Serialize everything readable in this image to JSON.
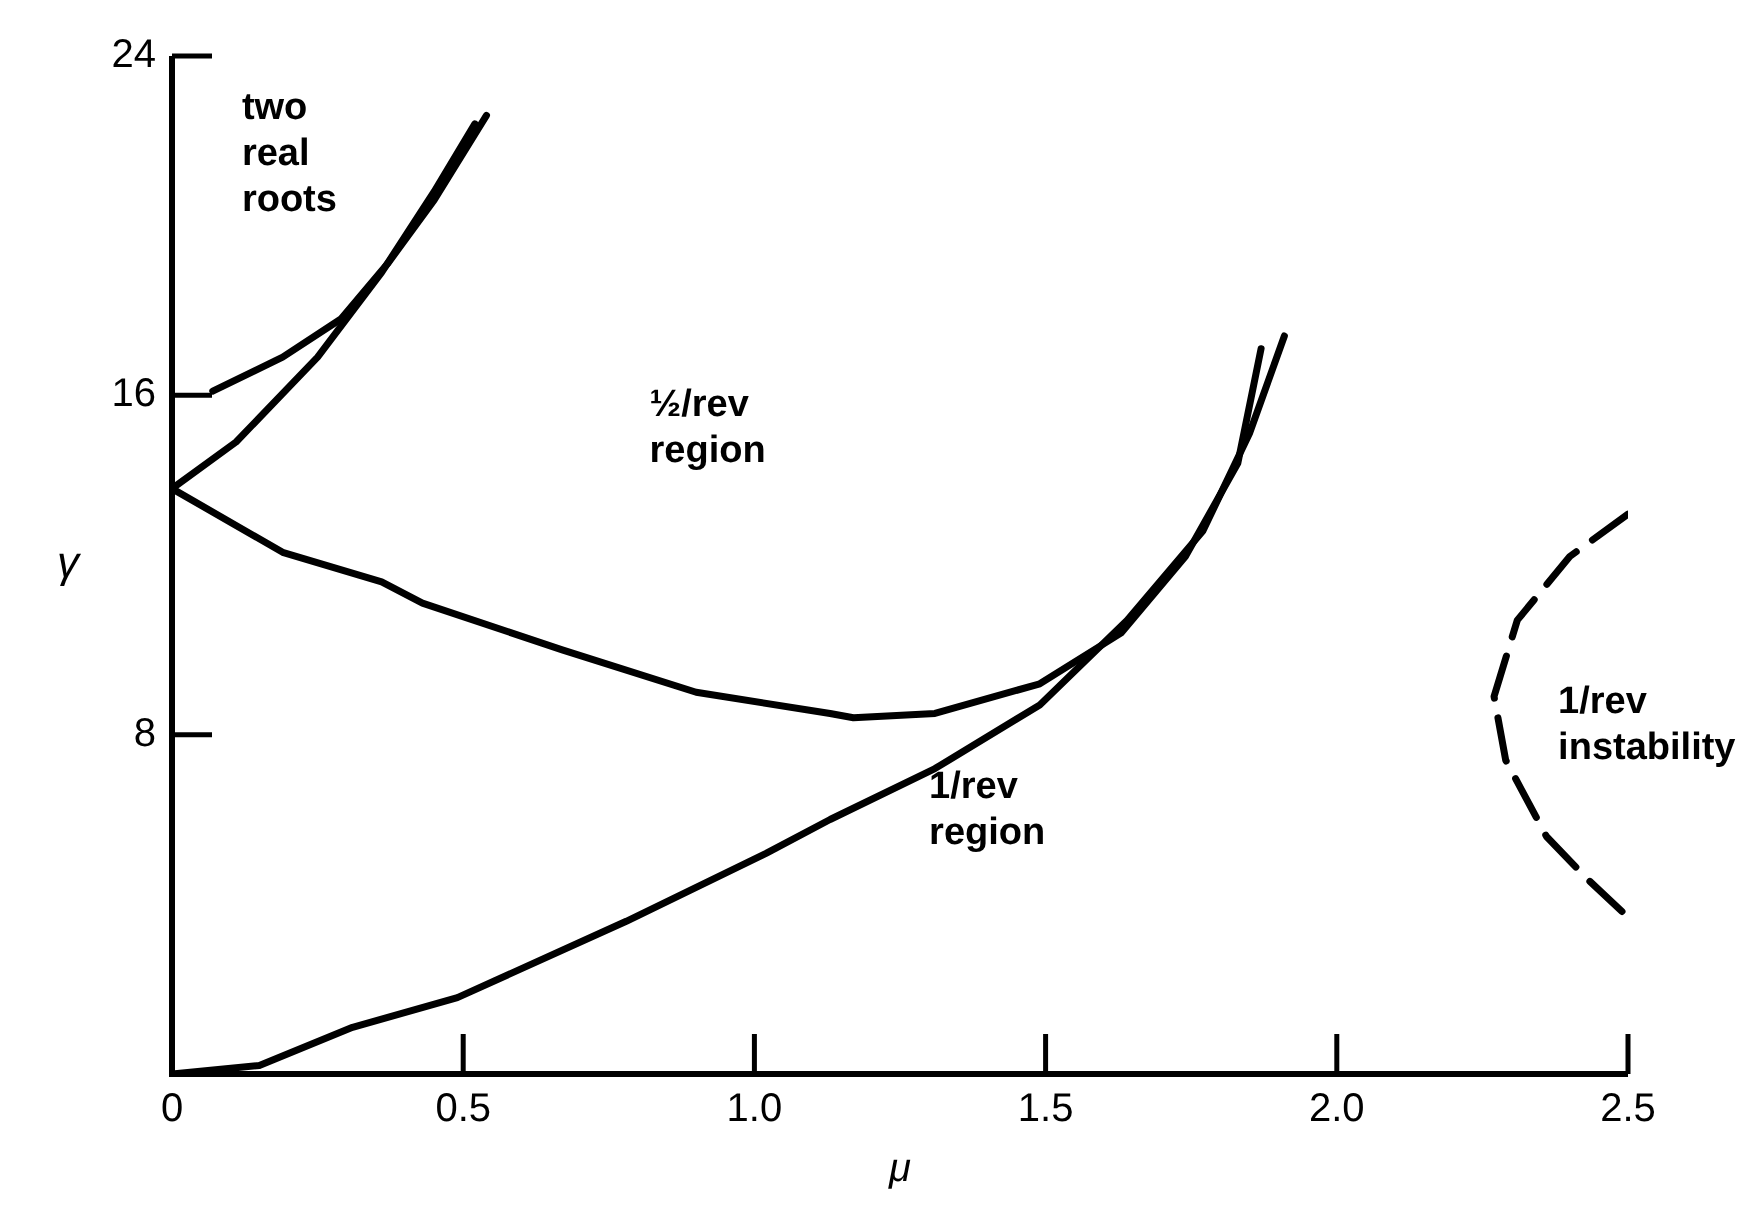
{
  "chart_data": {
    "type": "line",
    "xlabel": "μ",
    "ylabel": "γ",
    "xlim": [
      0,
      2.5
    ],
    "ylim": [
      0,
      24
    ],
    "xticks": [
      0,
      {
        "value": 0.5,
        "label": "0.5"
      },
      {
        "value": 1,
        "label": "1.0"
      },
      {
        "value": 1.5,
        "label": "1.5"
      },
      {
        "value": 2,
        "label": "2.0"
      },
      {
        "value": 2.5,
        "label": "2.5"
      }
    ],
    "yticks": [
      8,
      16,
      24
    ],
    "grid": false,
    "legend": false,
    "marker": "none",
    "series": [
      {
        "color": "#000000",
        "line_style": "solid",
        "x": [
          0.07,
          0.19,
          0.29,
          0.37,
          0.45,
          0.54
        ],
        "values": [
          16.1,
          16.9,
          17.8,
          19.1,
          20.6,
          22.6
        ]
      },
      {
        "color": "#000000",
        "line_style": "solid",
        "x": [
          0,
          0.11,
          0.25,
          0.36,
          0.45,
          0.52
        ],
        "values": [
          13.8,
          14.9,
          16.9,
          18.9,
          20.8,
          22.4
        ]
      },
      {
        "color": "#000000",
        "line_style": "solid",
        "x": [
          0,
          0.19,
          0.36,
          0.43,
          0.67,
          0.9,
          1.13,
          1.17,
          1.31,
          1.49,
          1.63,
          1.74,
          1.83,
          1.87
        ],
        "values": [
          13.8,
          12.3,
          11.6,
          11.1,
          10,
          9,
          8.5,
          8.4,
          8.5,
          9.2,
          10.4,
          12.2,
          14.4,
          17.1
        ]
      },
      {
        "color": "#000000",
        "line_style": "solid",
        "x": [
          0,
          0.15,
          0.31,
          0.49,
          0.78,
          1.02,
          1.13,
          1.31,
          1.49,
          1.64,
          1.77,
          1.85,
          1.91
        ],
        "values": [
          0,
          0.2,
          1.1,
          1.8,
          3.6,
          5.2,
          6,
          7.2,
          8.7,
          10.7,
          12.8,
          15.1,
          17.4
        ]
      },
      {
        "color": "#000000",
        "line_style": "dashed",
        "x": [
          2.5,
          2.4,
          2.31,
          2.27,
          2.29,
          2.36,
          2.43,
          2.5
        ],
        "values": [
          13.2,
          12.2,
          10.7,
          8.9,
          7.4,
          5.6,
          4.6,
          3.7
        ]
      }
    ],
    "annotations": [
      "two\nreal\nroots",
      "½/rev\nregion",
      "1/rev\nregion",
      "1/rev\ninstability"
    ]
  }
}
